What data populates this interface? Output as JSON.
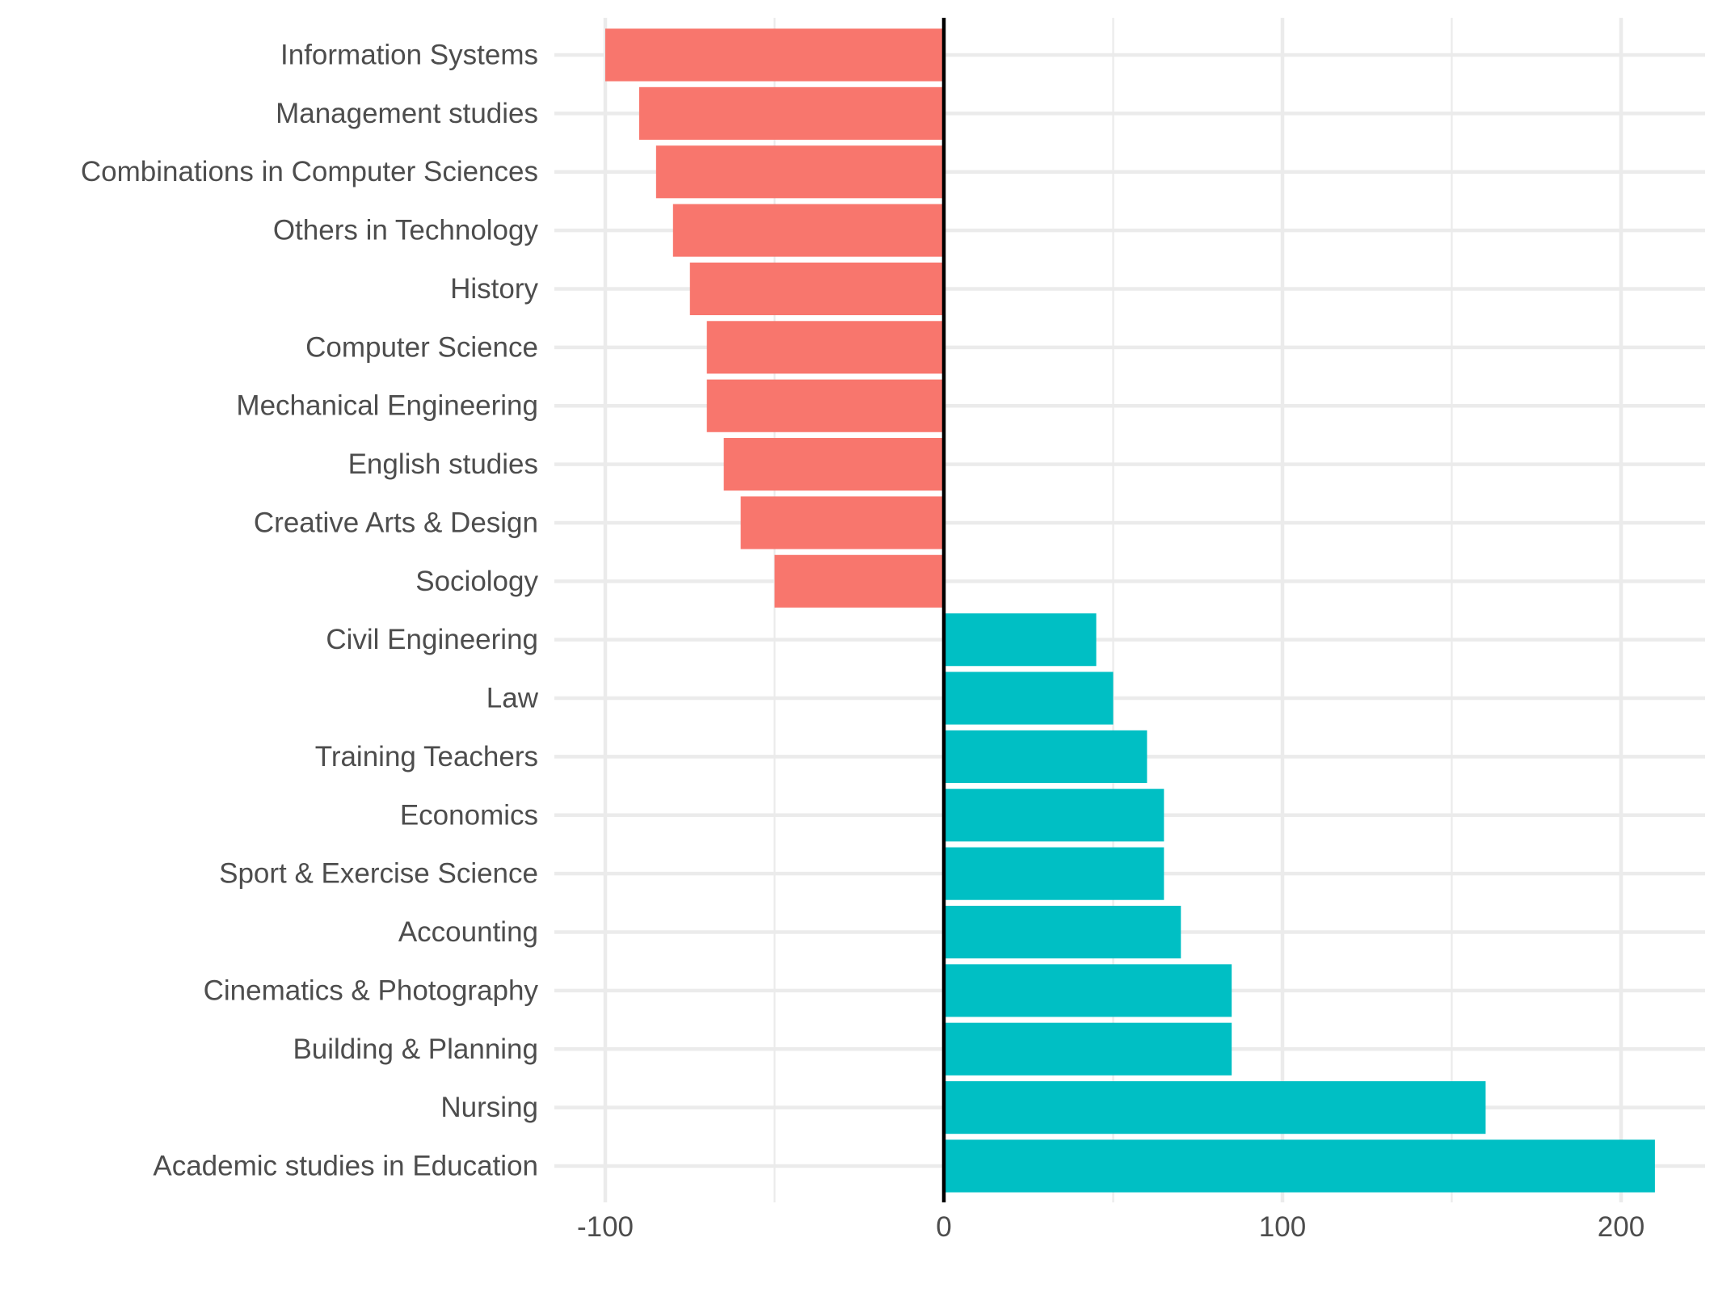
{
  "chart_data": {
    "type": "bar",
    "orientation": "horizontal",
    "title": "",
    "xlabel": "",
    "ylabel": "",
    "xlim": [
      -100,
      225
    ],
    "x_ticks": [
      -100,
      0,
      100,
      200
    ],
    "x_tick_labels": [
      "-100",
      "0",
      "100",
      "200"
    ],
    "grid": true,
    "legend": "none",
    "colors": {
      "negative": "#F8766D",
      "positive": "#00BFC4",
      "zero_line": "#000000",
      "grid": "#EBEBEB",
      "text": "#4D4D4D"
    },
    "categories": [
      "Information Systems",
      "Management studies",
      "Combinations in Computer Sciences",
      "Others in Technology",
      "History",
      "Computer Science",
      "Mechanical Engineering",
      "English studies",
      "Creative Arts & Design",
      "Sociology",
      "Civil Engineering",
      "Law",
      "Training Teachers",
      "Economics",
      "Sport & Exercise Science",
      "Accounting",
      "Cinematics & Photography",
      "Building & Planning",
      "Nursing",
      "Academic studies in Education"
    ],
    "values": [
      -100,
      -90,
      -85,
      -80,
      -75,
      -70,
      -70,
      -65,
      -60,
      -50,
      45,
      50,
      60,
      65,
      65,
      70,
      85,
      85,
      160,
      210
    ]
  }
}
